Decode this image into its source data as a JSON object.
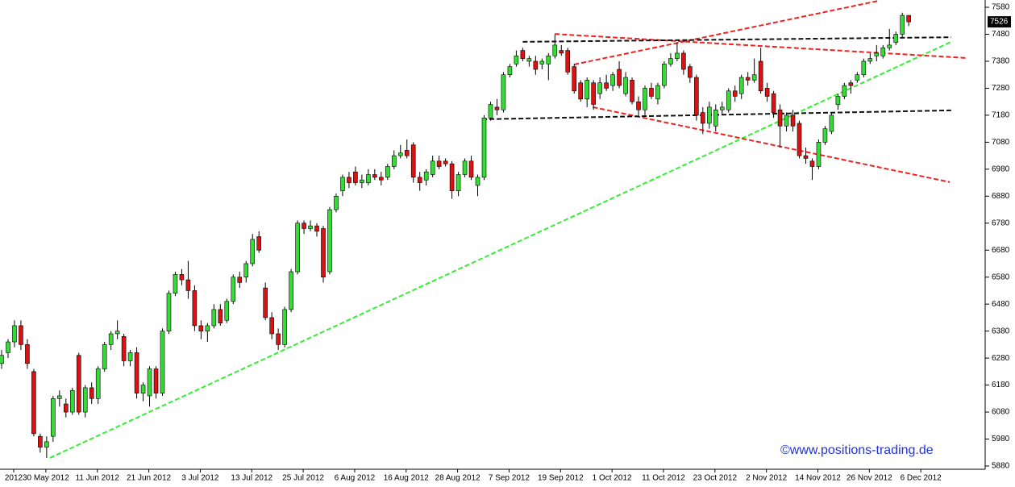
{
  "chart_data": {
    "type": "candlestick",
    "watermark": "©www.positions-trading.de",
    "categories": [
      "2012",
      null,
      null,
      null,
      null,
      "30 May 2012",
      null,
      null,
      null,
      null,
      null,
      null,
      null,
      "11 Jun 2012",
      null,
      null,
      null,
      null,
      null,
      null,
      null,
      "21 Jun 2012",
      null,
      null,
      null,
      null,
      null,
      null,
      null,
      "3 Jul 2012",
      null,
      null,
      null,
      null,
      null,
      null,
      null,
      "13 Jul 2012",
      null,
      null,
      null,
      null,
      null,
      null,
      null,
      "25 Jul 2012",
      null,
      null,
      null,
      null,
      null,
      null,
      null,
      "6 Aug 2012",
      null,
      null,
      null,
      null,
      null,
      null,
      null,
      "16 Aug 2012",
      null,
      null,
      null,
      null,
      null,
      null,
      null,
      "28 Aug 2012",
      null,
      null,
      null,
      null,
      null,
      null,
      null,
      "7 Sep 2012",
      null,
      null,
      null,
      null,
      null,
      null,
      null,
      "19 Sep 2012",
      null,
      null,
      null,
      null,
      null,
      null,
      null,
      "1 Oct 2012",
      null,
      null,
      null,
      null,
      null,
      null,
      null,
      "11 Oct 2012",
      null,
      null,
      null,
      null,
      null,
      null,
      null,
      "23 Oct 2012",
      null,
      null,
      null,
      null,
      null,
      null,
      null,
      "2 Nov 2012",
      null,
      null,
      null,
      null,
      null,
      null,
      null,
      "14 Nov 2012",
      null,
      null,
      null,
      null,
      null,
      null,
      null,
      "26 Nov 2012",
      null,
      null,
      null,
      null,
      null,
      null,
      null,
      "6 Dec 2012"
    ],
    "ohlc": [
      [
        6260,
        6310,
        6240,
        6290
      ],
      [
        6300,
        6350,
        6280,
        6340
      ],
      [
        6340,
        6420,
        6320,
        6400
      ],
      [
        6400,
        6420,
        6310,
        6330
      ],
      [
        6330,
        6350,
        6240,
        6260
      ],
      [
        6230,
        6240,
        5990,
        6000
      ],
      [
        5990,
        6000,
        5930,
        5950
      ],
      [
        5950,
        5990,
        5910,
        5970
      ],
      [
        5990,
        6140,
        5970,
        6130
      ],
      [
        6130,
        6160,
        6100,
        6140
      ],
      [
        6110,
        6130,
        6060,
        6080
      ],
      [
        6080,
        6170,
        6070,
        6160
      ],
      [
        6290,
        6300,
        6070,
        6080
      ],
      [
        6080,
        6180,
        6060,
        6170
      ],
      [
        6170,
        6190,
        6110,
        6130
      ],
      [
        6130,
        6250,
        6110,
        6240
      ],
      [
        6240,
        6340,
        6230,
        6330
      ],
      [
        6330,
        6380,
        6310,
        6370
      ],
      [
        6370,
        6420,
        6350,
        6380
      ],
      [
        6360,
        6370,
        6250,
        6270
      ],
      [
        6270,
        6310,
        6250,
        6300
      ],
      [
        6300,
        6320,
        6130,
        6150
      ],
      [
        6150,
        6190,
        6120,
        6180
      ],
      [
        6140,
        6250,
        6100,
        6240
      ],
      [
        6240,
        6250,
        6130,
        6150
      ],
      [
        6150,
        6390,
        6140,
        6380
      ],
      [
        6380,
        6530,
        6370,
        6520
      ],
      [
        6520,
        6600,
        6510,
        6590
      ],
      [
        6590,
        6610,
        6550,
        6570
      ],
      [
        6570,
        6640,
        6500,
        6530
      ],
      [
        6530,
        6550,
        6380,
        6400
      ],
      [
        6400,
        6420,
        6350,
        6380
      ],
      [
        6380,
        6410,
        6340,
        6400
      ],
      [
        6400,
        6480,
        6390,
        6460
      ],
      [
        6460,
        6480,
        6400,
        6410
      ],
      [
        6420,
        6500,
        6410,
        6490
      ],
      [
        6490,
        6590,
        6480,
        6580
      ],
      [
        6580,
        6600,
        6540,
        6560
      ],
      [
        6580,
        6640,
        6560,
        6630
      ],
      [
        6630,
        6740,
        6620,
        6720
      ],
      [
        6730,
        6750,
        6670,
        6680
      ],
      [
        6540,
        6560,
        6420,
        6430
      ],
      [
        6430,
        6450,
        6350,
        6370
      ],
      [
        6370,
        6390,
        6310,
        6330
      ],
      [
        6330,
        6470,
        6320,
        6460
      ],
      [
        6460,
        6610,
        6450,
        6600
      ],
      [
        6600,
        6790,
        6590,
        6780
      ],
      [
        6780,
        6790,
        6740,
        6760
      ],
      [
        6760,
        6790,
        6750,
        6770
      ],
      [
        6770,
        6780,
        6730,
        6750
      ],
      [
        6760,
        6770,
        6560,
        6580
      ],
      [
        6600,
        6840,
        6590,
        6830
      ],
      [
        6830,
        6890,
        6820,
        6880
      ],
      [
        6900,
        6960,
        6880,
        6950
      ],
      [
        6950,
        6970,
        6910,
        6930
      ],
      [
        6970,
        6990,
        6920,
        6930
      ],
      [
        6930,
        6960,
        6910,
        6940
      ],
      [
        6930,
        6980,
        6920,
        6960
      ],
      [
        6960,
        6980,
        6940,
        6950
      ],
      [
        6950,
        6970,
        6920,
        6940
      ],
      [
        6950,
        7000,
        6940,
        6990
      ],
      [
        6990,
        7050,
        6980,
        7030
      ],
      [
        7030,
        7070,
        7020,
        7040
      ],
      [
        7050,
        7090,
        7020,
        7030
      ],
      [
        7070,
        7080,
        6930,
        6950
      ],
      [
        6950,
        6970,
        6900,
        6930
      ],
      [
        6940,
        6980,
        6920,
        6970
      ],
      [
        6960,
        7030,
        6950,
        7010
      ],
      [
        7010,
        7030,
        6980,
        6990
      ],
      [
        7010,
        7020,
        6990,
        7000
      ],
      [
        7000,
        7010,
        6870,
        6900
      ],
      [
        6900,
        6970,
        6880,
        6960
      ],
      [
        6960,
        7020,
        6950,
        7010
      ],
      [
        7010,
        7030,
        6940,
        6950
      ],
      [
        6920,
        6960,
        6880,
        6950
      ],
      [
        6950,
        7180,
        6940,
        7170
      ],
      [
        7170,
        7230,
        7160,
        7220
      ],
      [
        7210,
        7240,
        7180,
        7200
      ],
      [
        7200,
        7340,
        7190,
        7330
      ],
      [
        7330,
        7370,
        7320,
        7360
      ],
      [
        7370,
        7420,
        7360,
        7400
      ],
      [
        7420,
        7430,
        7380,
        7390
      ],
      [
        7380,
        7400,
        7360,
        7390
      ],
      [
        7380,
        7400,
        7330,
        7350
      ],
      [
        7370,
        7390,
        7350,
        7380
      ],
      [
        7370,
        7410,
        7310,
        7400
      ],
      [
        7400,
        7480,
        7390,
        7440
      ],
      [
        7420,
        7440,
        7400,
        7410
      ],
      [
        7420,
        7430,
        7330,
        7340
      ],
      [
        7360,
        7370,
        7260,
        7270
      ],
      [
        7300,
        7310,
        7230,
        7240
      ],
      [
        7240,
        7320,
        7210,
        7310
      ],
      [
        7300,
        7310,
        7200,
        7220
      ],
      [
        7260,
        7320,
        7240,
        7300
      ],
      [
        7300,
        7330,
        7270,
        7280
      ],
      [
        7290,
        7340,
        7270,
        7330
      ],
      [
        7350,
        7380,
        7280,
        7290
      ],
      [
        7260,
        7340,
        7250,
        7320
      ],
      [
        7310,
        7320,
        7220,
        7230
      ],
      [
        7230,
        7250,
        7180,
        7200
      ],
      [
        7200,
        7290,
        7180,
        7280
      ],
      [
        7280,
        7300,
        7240,
        7250
      ],
      [
        7240,
        7300,
        7220,
        7290
      ],
      [
        7290,
        7380,
        7280,
        7370
      ],
      [
        7370,
        7410,
        7360,
        7390
      ],
      [
        7390,
        7450,
        7380,
        7410
      ],
      [
        7410,
        7420,
        7330,
        7350
      ],
      [
        7360,
        7370,
        7300,
        7320
      ],
      [
        7320,
        7330,
        7160,
        7180
      ],
      [
        7190,
        7210,
        7110,
        7150
      ],
      [
        7150,
        7230,
        7130,
        7210
      ],
      [
        7140,
        7220,
        7120,
        7200
      ],
      [
        7200,
        7230,
        7180,
        7210
      ],
      [
        7200,
        7280,
        7190,
        7270
      ],
      [
        7270,
        7290,
        7230,
        7250
      ],
      [
        7260,
        7330,
        7240,
        7320
      ],
      [
        7320,
        7340,
        7290,
        7310
      ],
      [
        7310,
        7390,
        7300,
        7330
      ],
      [
        7380,
        7430,
        7260,
        7270
      ],
      [
        7280,
        7300,
        7230,
        7250
      ],
      [
        7260,
        7270,
        7170,
        7190
      ],
      [
        7200,
        7220,
        7060,
        7140
      ],
      [
        7140,
        7190,
        7120,
        7180
      ],
      [
        7180,
        7200,
        7120,
        7140
      ],
      [
        7150,
        7160,
        7020,
        7030
      ],
      [
        7030,
        7060,
        7000,
        7020
      ],
      [
        7010,
        7020,
        6940,
        6990
      ],
      [
        6990,
        7090,
        6980,
        7080
      ],
      [
        7080,
        7140,
        7070,
        7130
      ],
      [
        7120,
        7190,
        7110,
        7180
      ],
      [
        7220,
        7260,
        7200,
        7250
      ],
      [
        7250,
        7300,
        7240,
        7290
      ],
      [
        7300,
        7310,
        7260,
        7290
      ],
      [
        7310,
        7340,
        7300,
        7330
      ],
      [
        7330,
        7390,
        7320,
        7380
      ],
      [
        7380,
        7410,
        7370,
        7390
      ],
      [
        7400,
        7440,
        7380,
        7410
      ],
      [
        7400,
        7440,
        7390,
        7430
      ],
      [
        7430,
        7500,
        7420,
        7440
      ],
      [
        7450,
        7490,
        7440,
        7480
      ],
      [
        7480,
        7560,
        7470,
        7550
      ],
      [
        7550,
        7550,
        7510,
        7526
      ]
    ],
    "up_color": "#33dd33",
    "down_color": "#dd1111",
    "trendlines": [
      {
        "color": "#33ee33",
        "points": [
          [
            7.5,
            5910
          ],
          [
            147.6,
            7452
          ]
        ]
      },
      {
        "color": "#ee2222",
        "points": [
          [
            89,
            7368
          ],
          [
            136.3,
            7604
          ]
        ]
      },
      {
        "color": "#ee2222",
        "points": [
          [
            86,
            7481
          ],
          [
            150.1,
            7392
          ]
        ]
      },
      {
        "color": "#ee2222",
        "points": [
          [
            91.9,
            7210
          ],
          [
            147.4,
            6932
          ]
        ]
      },
      {
        "color": "#111111",
        "points": [
          [
            81,
            7452
          ],
          [
            147.6,
            7469
          ]
        ]
      },
      {
        "color": "#111111",
        "points": [
          [
            74.7,
            7165
          ],
          [
            147.6,
            7198
          ]
        ]
      }
    ],
    "ylim": [
      5868,
      7607
    ],
    "yticks": [
      7580,
      7480,
      7380,
      7280,
      7180,
      7080,
      6980,
      6880,
      6780,
      6680,
      6580,
      6480,
      6380,
      6280,
      6180,
      6080,
      5980,
      5880
    ]
  }
}
